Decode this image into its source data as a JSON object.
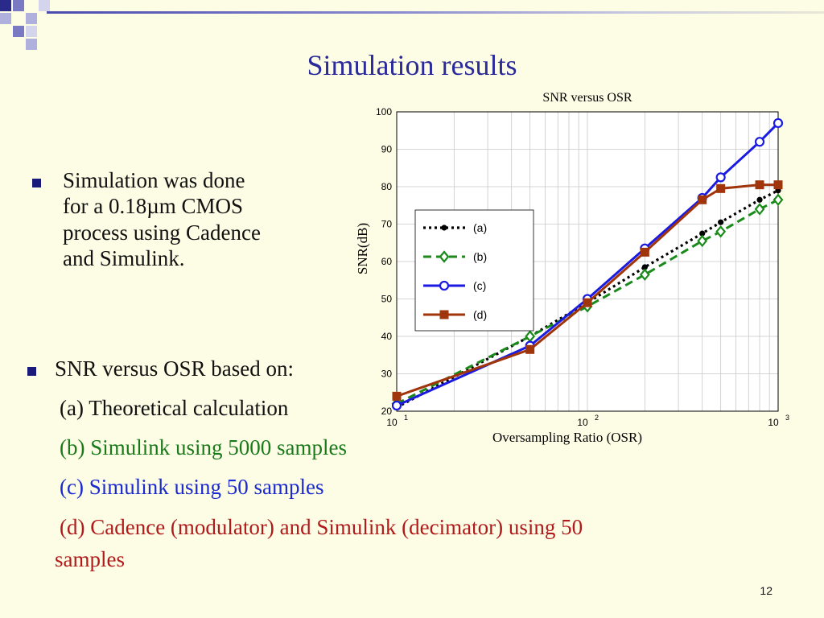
{
  "slide": {
    "title": "Simulation results",
    "bullet1_lines": [
      "Simulation was done",
      "for a 0.18µm CMOS",
      "process using Cadence",
      "and Simulink."
    ],
    "bullet2_head": "SNR versus OSR based on:",
    "items": [
      {
        "text": "(a) Theoretical calculation",
        "color": "#111111"
      },
      {
        "text": "(b) Simulink using 5000 samples",
        "color": "#1a7a1a"
      },
      {
        "text": "(c) Simulink using 50 samples",
        "color": "#1a2ad0"
      },
      {
        "text": "(d) Cadence (modulator) and Simulink  (decimator) using 50",
        "color": "#b01a1a"
      },
      {
        "text": "samples",
        "color": "#b01a1a"
      }
    ],
    "page_number": "12",
    "accent_color": "#2a2a9a"
  },
  "chart_data": {
    "type": "line",
    "title": "SNR versus OSR",
    "xlabel": "Oversampling Ratio (OSR)",
    "ylabel": "SNR(dB)",
    "xscale": "log",
    "xlim": [
      10,
      1000
    ],
    "ylim": [
      20,
      100
    ],
    "yticks": [
      "20",
      "30",
      "40",
      "50",
      "60",
      "70",
      "80",
      "90",
      "100"
    ],
    "xticks": [
      {
        "base": "10",
        "exp": "1"
      },
      {
        "base": "10",
        "exp": "2"
      },
      {
        "base": "10",
        "exp": "3"
      }
    ],
    "grid": true,
    "legend_position": "center-left",
    "series": [
      {
        "name": "(a)",
        "color": "#000000",
        "style": "dotted",
        "marker": "dot",
        "x": [
          10,
          50,
          100,
          200,
          400,
          500,
          800,
          1000
        ],
        "y": [
          21,
          40,
          49,
          58.5,
          67.5,
          70.5,
          76.5,
          79
        ]
      },
      {
        "name": "(b)",
        "color": "#1a8a1a",
        "style": "dashed",
        "marker": "diamond",
        "x": [
          10,
          50,
          100,
          200,
          400,
          500,
          800,
          1000
        ],
        "y": [
          22,
          40,
          48,
          56.5,
          65.5,
          68,
          74,
          76.5
        ]
      },
      {
        "name": "(c)",
        "color": "#1a1ae0",
        "style": "solid",
        "marker": "circle",
        "x": [
          10,
          50,
          100,
          200,
          400,
          500,
          800,
          1000
        ],
        "y": [
          21.5,
          37.5,
          50,
          63.5,
          77,
          82.5,
          92,
          97
        ]
      },
      {
        "name": "(d)",
        "color": "#a0340a",
        "style": "solid",
        "marker": "square",
        "x": [
          10,
          50,
          100,
          200,
          400,
          500,
          800,
          1000
        ],
        "y": [
          24,
          36.5,
          49,
          62.5,
          76.5,
          79.5,
          80.5,
          80.5
        ]
      }
    ]
  }
}
